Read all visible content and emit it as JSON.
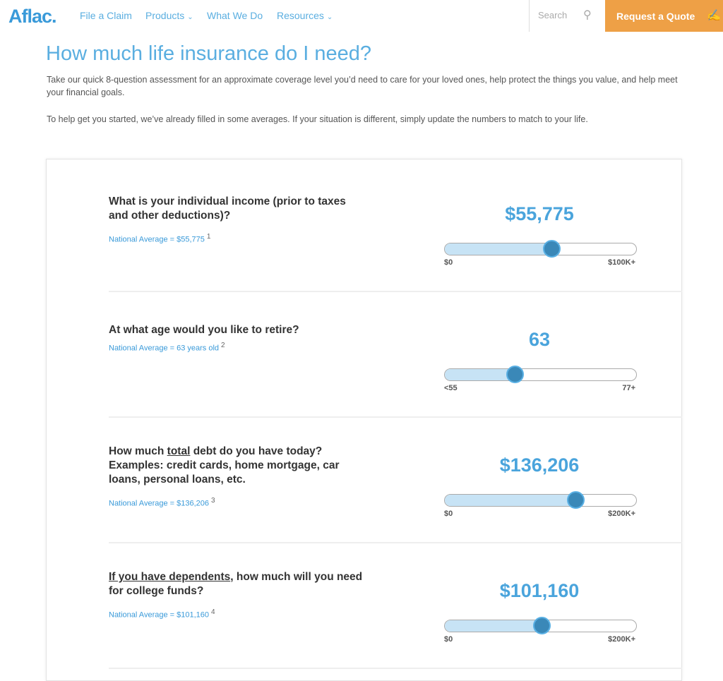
{
  "nav": {
    "logo": "Aflac.",
    "items": [
      {
        "label": "File a Claim",
        "dropdown": false
      },
      {
        "label": "Products",
        "dropdown": true
      },
      {
        "label": "What We Do",
        "dropdown": false
      },
      {
        "label": "Resources",
        "dropdown": true
      }
    ],
    "search_placeholder": "Search",
    "quote_button": "Request a Quote"
  },
  "page": {
    "title": "How much life insurance do I need?",
    "intro": "Take our quick 8-question assessment for an approximate coverage level you’d need to care for your loved ones, help protect the things you value, and help meet your financial goals.",
    "note": "To help get you started, we’ve already filled in some averages. If your situation is different, simply update the numbers to match to your life."
  },
  "questions": [
    {
      "pre": "",
      "u": "",
      "post": "What is your individual income (prior to taxes and other deductions)?",
      "avg": "National Average = $55,775",
      "sup": "1",
      "value_label": "$55,775",
      "value": 55775,
      "min": 0,
      "max": 100000,
      "min_label": "$0",
      "max_label": "$100K+"
    },
    {
      "pre": "",
      "u": "",
      "post": "At what age would you like to retire?",
      "avg": "National Average = 63 years old",
      "sup": "2",
      "value_label": "63",
      "value": 63,
      "min": 55,
      "max": 77,
      "min_label": "<55",
      "max_label": "77+"
    },
    {
      "pre": "How much ",
      "u": "total",
      "post": " debt do you have today? Examples: credit cards, home mortgage, car loans, personal loans, etc.",
      "avg": "National Average = $136,206",
      "sup": "3",
      "value_label": "$136,206",
      "value": 136206,
      "min": 0,
      "max": 200000,
      "min_label": "$0",
      "max_label": "$200K+"
    },
    {
      "pre": "",
      "u": "If you have dependents",
      "post": ", how much will you need for college funds?",
      "avg": "National Average = $101,160",
      "sup": "4",
      "value_label": "$101,160",
      "value": 101160,
      "min": 0,
      "max": 200000,
      "min_label": "$0",
      "max_label": "$200K+"
    }
  ],
  "colors": {
    "accent": "#5aaee0",
    "quote": "#eea046",
    "thumb": "#3a88b8"
  }
}
